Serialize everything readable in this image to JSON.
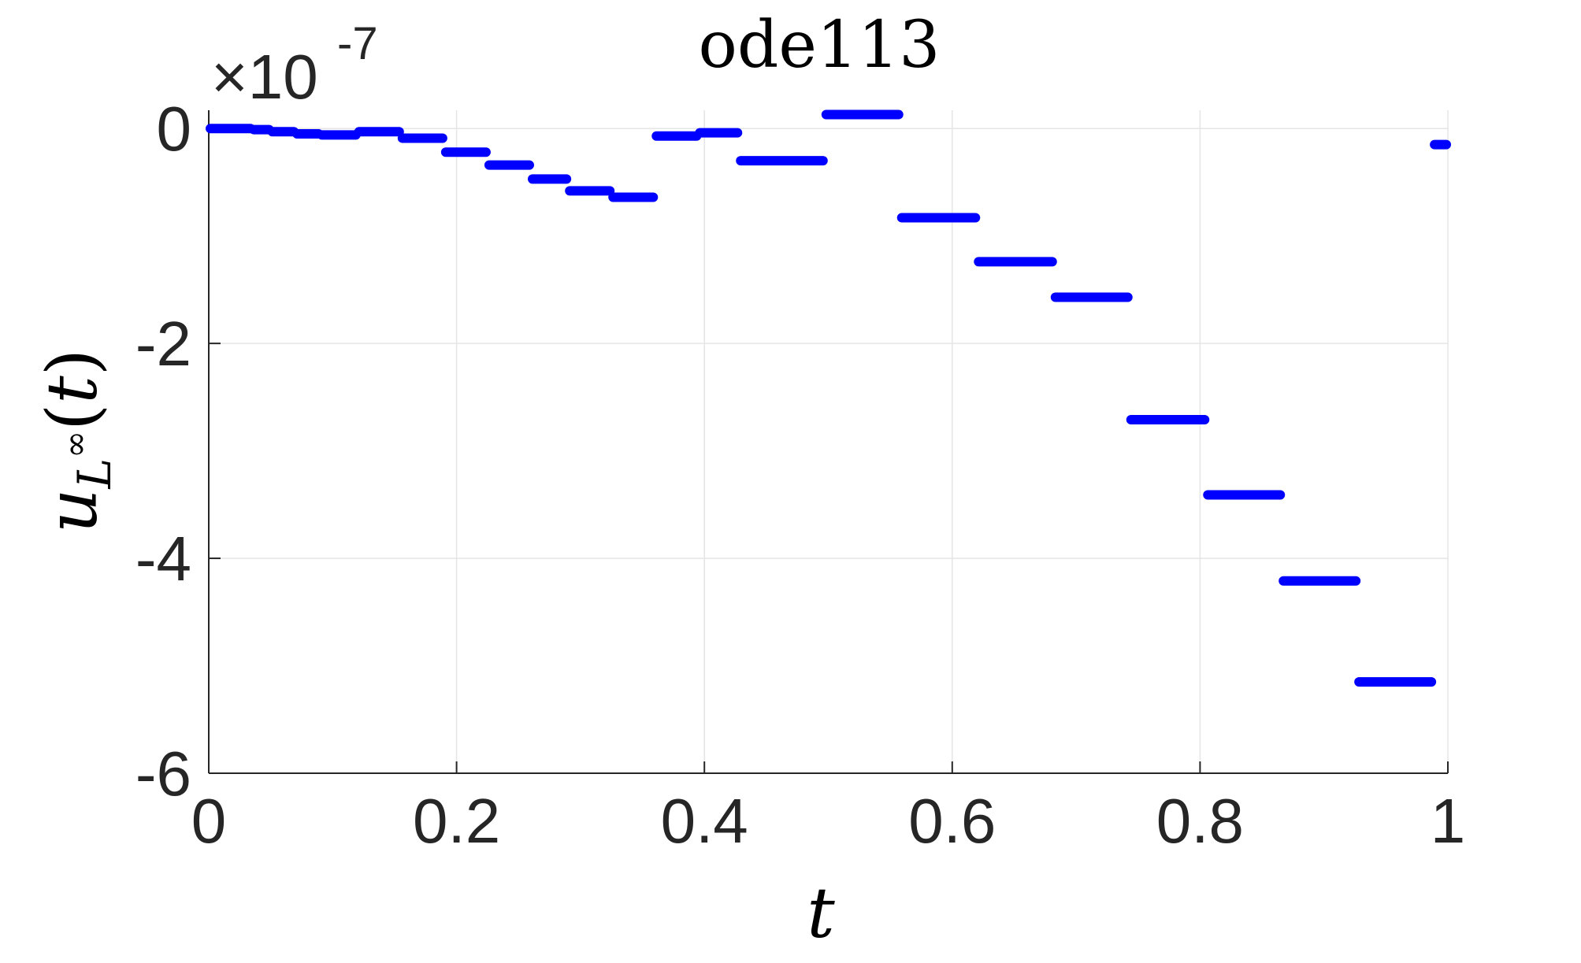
{
  "chart_data": {
    "type": "line",
    "title": "ode113",
    "xlabel": "t",
    "ylabel": {
      "main": "u",
      "subscript": "L",
      "superscript": "∞",
      "open_paren": "(",
      "argument": "t",
      "close_paren": ")"
    },
    "xlim": [
      0,
      1
    ],
    "ylim": [
      -6e-07,
      1.7e-08
    ],
    "y_exponent": {
      "base": "×10",
      "power": "-7"
    },
    "x_ticks": [
      {
        "value": 0,
        "label": "0"
      },
      {
        "value": 0.2,
        "label": "0.2"
      },
      {
        "value": 0.4,
        "label": "0.4"
      },
      {
        "value": 0.6,
        "label": "0.6"
      },
      {
        "value": 0.8,
        "label": "0.8"
      },
      {
        "value": 1,
        "label": "1"
      }
    ],
    "y_ticks": [
      {
        "value": 0,
        "label": "0"
      },
      {
        "value": -2e-07,
        "label": "-2"
      },
      {
        "value": -4e-07,
        "label": "-4"
      },
      {
        "value": -6e-07,
        "label": "-6"
      }
    ],
    "grid": true,
    "legend": null,
    "series": [
      {
        "color": "#0000ff",
        "style": "piecewise-constant segments",
        "segments": [
          {
            "x": [
              0.0,
              0.035
            ],
            "y": -0.0
          },
          {
            "x": [
              0.035,
              0.05
            ],
            "y": -1e-09
          },
          {
            "x": [
              0.05,
              0.07
            ],
            "y": -3e-09
          },
          {
            "x": [
              0.07,
              0.09
            ],
            "y": -5e-09
          },
          {
            "x": [
              0.09,
              0.12
            ],
            "y": -6e-09
          },
          {
            "x": [
              0.12,
              0.155
            ],
            "y": -3e-09
          },
          {
            "x": [
              0.155,
              0.19
            ],
            "y": -9e-09
          },
          {
            "x": [
              0.19,
              0.225
            ],
            "y": -2.2e-08
          },
          {
            "x": [
              0.225,
              0.26
            ],
            "y": -3.4e-08
          },
          {
            "x": [
              0.26,
              0.29
            ],
            "y": -4.7e-08
          },
          {
            "x": [
              0.29,
              0.325
            ],
            "y": -5.8e-08
          },
          {
            "x": [
              0.325,
              0.36
            ],
            "y": -6.4e-08
          },
          {
            "x": [
              0.36,
              0.395
            ],
            "y": -7e-09
          },
          {
            "x": [
              0.395,
              0.428
            ],
            "y": -4e-09
          },
          {
            "x": [
              0.428,
              0.497
            ],
            "y": -3e-08
          },
          {
            "x": [
              0.497,
              0.558
            ],
            "y": 1.3e-08
          },
          {
            "x": [
              0.558,
              0.62
            ],
            "y": -8.3e-08
          },
          {
            "x": [
              0.62,
              0.682
            ],
            "y": -1.24e-07
          },
          {
            "x": [
              0.682,
              0.743
            ],
            "y": -1.57e-07
          },
          {
            "x": [
              0.743,
              0.805
            ],
            "y": -2.71e-07
          },
          {
            "x": [
              0.805,
              0.866
            ],
            "y": -3.41e-07
          },
          {
            "x": [
              0.866,
              0.927
            ],
            "y": -4.21e-07
          },
          {
            "x": [
              0.927,
              0.988
            ],
            "y": -5.15e-07
          },
          {
            "x": [
              0.988,
              1.0
            ],
            "y": -1.5e-08
          }
        ]
      }
    ]
  },
  "colors": {
    "series": "#0000ff",
    "axis": "#262626",
    "grid": "#e5e5e5",
    "background": "#ffffff"
  }
}
